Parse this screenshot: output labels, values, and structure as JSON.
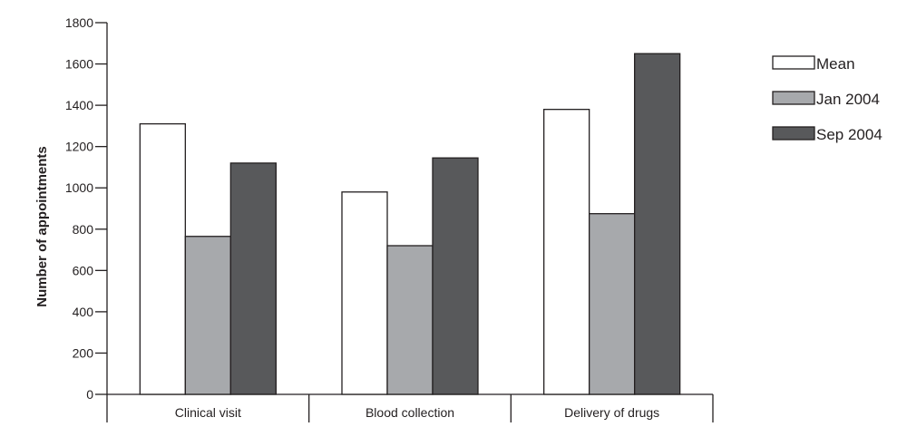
{
  "chart_data": {
    "type": "bar",
    "title": "",
    "xlabel": "",
    "ylabel": "Number of appointments",
    "categories": [
      "Clinical visit",
      "Blood collection",
      "Delivery of drugs"
    ],
    "series": [
      {
        "name": "Mean",
        "values": [
          1310,
          980,
          1380
        ],
        "color": "#ffffff"
      },
      {
        "name": "Jan 2004",
        "values": [
          765,
          720,
          875
        ],
        "color": "#a7a9ac"
      },
      {
        "name": "Sep 2004",
        "values": [
          1120,
          1145,
          1650
        ],
        "color": "#58595b"
      }
    ],
    "ylim": [
      0,
      1800
    ],
    "yticks": [
      0,
      200,
      400,
      600,
      800,
      1000,
      1200,
      1400,
      1600,
      1800
    ],
    "ytick_labels": [
      "0",
      "200",
      "400",
      "600",
      "800",
      "1000",
      "1200",
      "1400",
      "1600",
      "1800"
    ],
    "grid": false,
    "legend_position": "top-right",
    "stroke_color": "#231f20"
  }
}
